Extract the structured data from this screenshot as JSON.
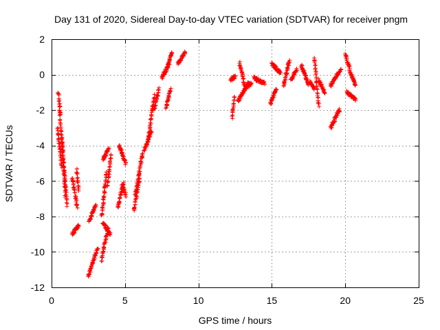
{
  "chart_data": {
    "type": "scatter",
    "title": "Day 131 of 2020, Sidereal Day-to-day VTEC variation (SDTVAR) for receiver pngm",
    "xlabel": "GPS time / hours",
    "ylabel": "SDTVAR / TECUs",
    "xlim": [
      0,
      25
    ],
    "ylim": [
      -12,
      2
    ],
    "xticks": [
      0,
      5,
      10,
      15,
      20,
      25
    ],
    "yticks": [
      -12,
      -10,
      -8,
      -6,
      -4,
      -2,
      0,
      2
    ],
    "xtick_labels": [
      "0",
      "5",
      "10",
      "15",
      "20",
      "25"
    ],
    "ytick_labels": [
      "-12",
      "-10",
      "-8",
      "-6",
      "-4",
      "-2",
      "0",
      "2"
    ],
    "grid": true,
    "marker": "+",
    "color": "#ff0000",
    "series": [
      {
        "name": "SDTVAR",
        "arcs": [
          {
            "x0": 0.4,
            "y0": -3.0,
            "x1": 0.7,
            "y1": -5.2
          },
          {
            "x0": 0.45,
            "y0": -1.0,
            "x1": 0.6,
            "y1": -2.2
          },
          {
            "x0": 0.55,
            "y0": -2.0,
            "x1": 0.95,
            "y1": -6.9
          },
          {
            "x0": 0.7,
            "y0": -3.5,
            "x1": 1.05,
            "y1": -7.4
          },
          {
            "x0": 1.4,
            "y0": -5.8,
            "x1": 1.75,
            "y1": -7.5
          },
          {
            "x0": 1.7,
            "y0": -5.3,
            "x1": 1.85,
            "y1": -6.6
          },
          {
            "x0": 1.4,
            "y0": -9.0,
            "x1": 1.85,
            "y1": -8.5
          },
          {
            "x0": 2.5,
            "y0": -11.4,
            "x1": 2.8,
            "y1": -10.6
          },
          {
            "x0": 2.8,
            "y0": -10.6,
            "x1": 3.15,
            "y1": -9.8
          },
          {
            "x0": 2.55,
            "y0": -8.3,
            "x1": 3.0,
            "y1": -7.4
          },
          {
            "x0": 3.4,
            "y0": -10.5,
            "x1": 3.85,
            "y1": -8.6
          },
          {
            "x0": 3.4,
            "y0": -8.0,
            "x1": 3.75,
            "y1": -5.5
          },
          {
            "x0": 3.5,
            "y0": -4.8,
            "x1": 3.9,
            "y1": -4.2
          },
          {
            "x0": 3.5,
            "y0": -8.4,
            "x1": 4.0,
            "y1": -9.0
          },
          {
            "x0": 3.8,
            "y0": -6.3,
            "x1": 4.05,
            "y1": -4.5
          },
          {
            "x0": 4.5,
            "y0": -7.5,
            "x1": 4.9,
            "y1": -6.1
          },
          {
            "x0": 4.6,
            "y0": -4.0,
            "x1": 5.05,
            "y1": -5.0
          },
          {
            "x0": 4.8,
            "y0": -6.2,
            "x1": 5.05,
            "y1": -6.8
          },
          {
            "x0": 5.6,
            "y0": -7.7,
            "x1": 6.0,
            "y1": -5.8
          },
          {
            "x0": 5.7,
            "y0": -6.8,
            "x1": 6.2,
            "y1": -4.4
          },
          {
            "x0": 6.3,
            "y0": -4.3,
            "x1": 6.8,
            "y1": -3.2
          },
          {
            "x0": 6.6,
            "y0": -3.5,
            "x1": 7.0,
            "y1": -1.2
          },
          {
            "x0": 7.0,
            "y0": -2.0,
            "x1": 7.3,
            "y1": -0.8
          },
          {
            "x0": 7.5,
            "y0": -0.2,
            "x1": 8.0,
            "y1": 0.6
          },
          {
            "x0": 7.8,
            "y0": -1.9,
            "x1": 8.1,
            "y1": -0.8
          },
          {
            "x0": 7.9,
            "y0": 0.5,
            "x1": 8.2,
            "y1": 1.3
          },
          {
            "x0": 8.6,
            "y0": 0.6,
            "x1": 9.1,
            "y1": 1.3
          },
          {
            "x0": 12.3,
            "y0": -2.4,
            "x1": 12.45,
            "y1": -1.2
          },
          {
            "x0": 12.2,
            "y0": -0.3,
            "x1": 12.5,
            "y1": -0.1
          },
          {
            "x0": 12.7,
            "y0": -1.5,
            "x1": 13.4,
            "y1": -0.5
          },
          {
            "x0": 12.8,
            "y0": 0.7,
            "x1": 13.2,
            "y1": -0.8
          },
          {
            "x0": 13.3,
            "y0": -0.7,
            "x1": 13.6,
            "y1": -0.5
          },
          {
            "x0": 13.8,
            "y0": -0.2,
            "x1": 14.5,
            "y1": -0.5
          },
          {
            "x0": 14.9,
            "y0": -1.6,
            "x1": 15.3,
            "y1": -0.8
          },
          {
            "x0": 15.0,
            "y0": 0.6,
            "x1": 15.6,
            "y1": 0.1
          },
          {
            "x0": 15.8,
            "y0": -0.6,
            "x1": 16.2,
            "y1": 0.8
          },
          {
            "x0": 16.3,
            "y0": -0.3,
            "x1": 16.7,
            "y1": 0.3
          },
          {
            "x0": 17.0,
            "y0": 0.5,
            "x1": 17.5,
            "y1": -0.5
          },
          {
            "x0": 17.6,
            "y0": -0.4,
            "x1": 17.9,
            "y1": -0.8
          },
          {
            "x0": 17.9,
            "y0": 1.0,
            "x1": 18.2,
            "y1": -1.8
          },
          {
            "x0": 18.2,
            "y0": -0.3,
            "x1": 18.6,
            "y1": -1.0
          },
          {
            "x0": 19.0,
            "y0": -3.0,
            "x1": 19.6,
            "y1": -2.0
          },
          {
            "x0": 19.0,
            "y0": -0.6,
            "x1": 19.7,
            "y1": 0.3
          },
          {
            "x0": 20.0,
            "y0": 1.1,
            "x1": 20.3,
            "y1": 0.4
          },
          {
            "x0": 20.1,
            "y0": -1.0,
            "x1": 20.7,
            "y1": -1.4
          },
          {
            "x0": 20.3,
            "y0": 0.2,
            "x1": 20.7,
            "y1": -0.6
          }
        ]
      }
    ]
  }
}
